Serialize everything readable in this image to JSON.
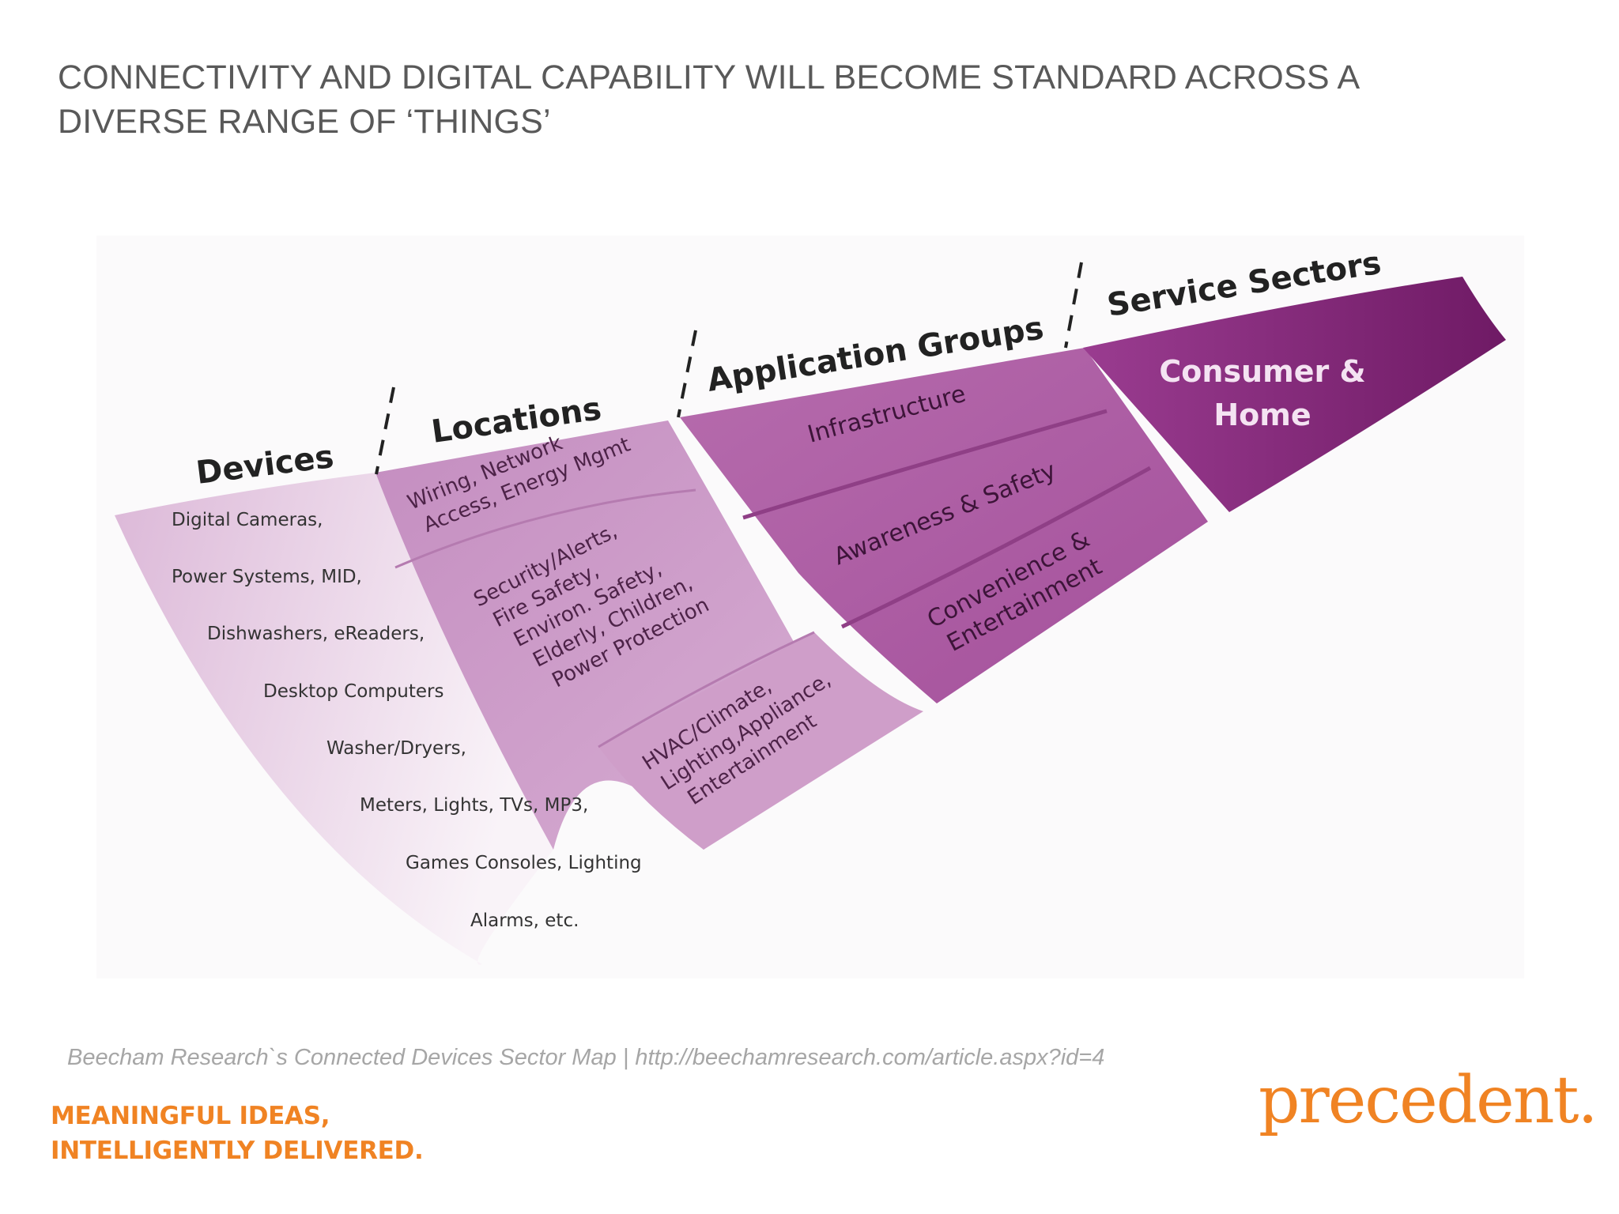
{
  "title": {
    "line1": "CONNECTIVITY AND DIGITAL CAPABILITY WILL BECOME STANDARD ACROSS A",
    "line2": "DIVERSE RANGE OF ‘THINGS’"
  },
  "diagram": {
    "headers": {
      "devices": "Devices",
      "locations": "Locations",
      "application_groups": "Application Groups",
      "service_sectors": "Service Sectors"
    },
    "devices": [
      "Digital Cameras,",
      "Power Systems, MID,",
      "Dishwashers, eReaders,",
      "Desktop Computers",
      "Washer/Dryers,",
      "Meters, Lights, TVs, MP3,",
      "Games Consoles, Lighting",
      "Alarms, etc."
    ],
    "locations": [
      [
        "Wiring, Network",
        "Access, Energy Mgmt"
      ],
      [
        "Security/Alerts,",
        "Fire Safety,",
        "Environ. Safety,",
        "Elderly, Children,",
        "Power Protection"
      ],
      [
        "HVAC/Climate,",
        "Lighting,Appliance,",
        "Entertainment"
      ]
    ],
    "application_groups": [
      [
        "Infrastructure"
      ],
      [
        "Awareness & Safety"
      ],
      [
        "Convenience &",
        "Entertainment"
      ]
    ],
    "service_sectors": [
      "Consumer &",
      "Home"
    ],
    "colors": {
      "devices_light": "#f7eef6",
      "devices_dark": "#dcb8d8",
      "locations": "#c68fc1",
      "application_groups": "#a9529f",
      "service_sectors": "#8a2a7f"
    }
  },
  "caption": "Beecham Research`s Connected Devices Sector Map | http://beechamresearch.com/article.aspx?id=4",
  "tagline": {
    "line1": "MEANINGFUL IDEAS,",
    "line2": "INTELLIGENTLY DELIVERED."
  },
  "logo": "precedent."
}
